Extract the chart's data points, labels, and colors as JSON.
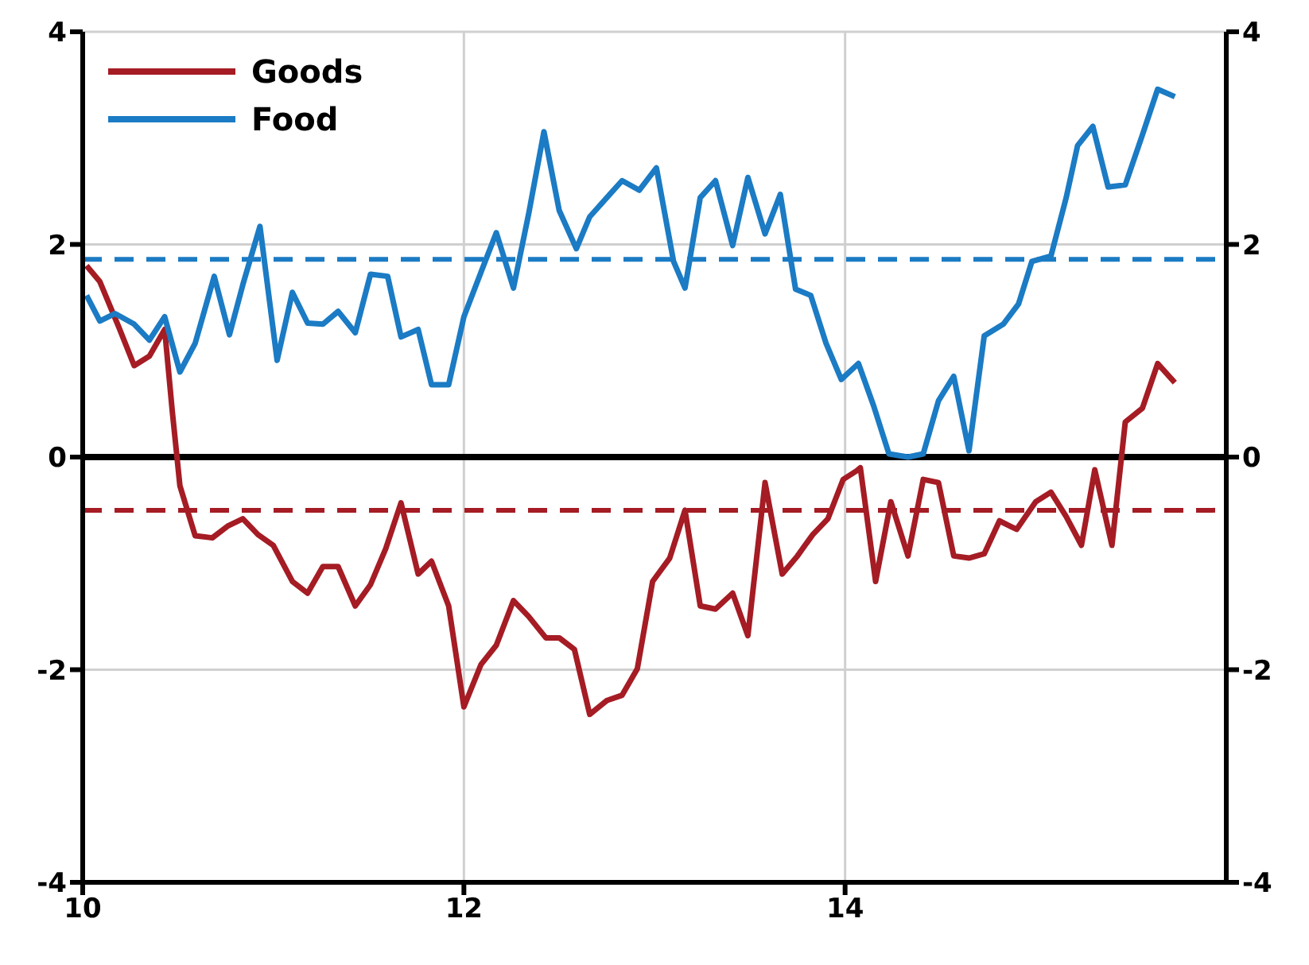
{
  "chart_data": {
    "type": "line",
    "xlim": [
      10,
      16
    ],
    "xticks": [
      10,
      12,
      14
    ],
    "ylim": [
      -4,
      4
    ],
    "yticks": [
      -4,
      -2,
      0,
      2,
      4
    ],
    "y2lim": [
      -4,
      4
    ],
    "y2ticks": [
      -4,
      -2,
      0,
      2,
      4
    ],
    "grid": true,
    "legend": "top left",
    "marker": "none",
    "line_style": "solid",
    "series": [
      {
        "name": "Goods",
        "color": "#a51c24",
        "x": [
          10.02,
          10.09,
          10.19,
          10.27,
          10.35,
          10.43,
          10.47,
          10.51,
          10.59,
          10.68,
          10.76,
          10.84,
          10.92,
          11.0,
          11.1,
          11.18,
          11.26,
          11.34,
          11.43,
          11.51,
          11.59,
          11.67,
          11.76,
          11.83,
          11.92,
          12.0,
          12.09,
          12.17,
          12.26,
          12.34,
          12.43,
          12.5,
          12.58,
          12.66,
          12.75,
          12.83,
          12.91,
          12.99,
          13.08,
          13.16,
          13.24,
          13.32,
          13.41,
          13.49,
          13.58,
          13.67,
          13.75,
          13.83,
          13.91,
          13.99,
          14.06,
          14.08,
          14.16,
          14.24,
          14.33,
          14.41,
          14.49,
          14.57,
          14.65,
          14.73,
          14.81,
          14.9,
          15.0,
          15.08,
          15.16,
          15.24,
          15.31,
          15.4,
          15.47,
          15.56,
          15.64,
          15.73
        ],
        "values": [
          1.8,
          1.65,
          1.22,
          0.86,
          0.95,
          1.2,
          0.43,
          -0.27,
          -0.74,
          -0.76,
          -0.65,
          -0.58,
          -0.73,
          -0.83,
          -1.17,
          -1.28,
          -1.03,
          -1.03,
          -1.4,
          -1.2,
          -0.86,
          -0.43,
          -1.1,
          -0.98,
          -1.4,
          -2.35,
          -1.95,
          -1.77,
          -1.35,
          -1.5,
          -1.7,
          -1.7,
          -1.81,
          -2.42,
          -2.29,
          -2.24,
          -1.99,
          -1.17,
          -0.95,
          -0.5,
          -1.4,
          -1.43,
          -1.28,
          -1.68,
          -0.24,
          -1.1,
          -0.93,
          -0.73,
          -0.58,
          -0.21,
          -0.13,
          -0.1,
          -1.17,
          -0.42,
          -0.93,
          -0.21,
          -0.24,
          -0.93,
          -0.95,
          -0.91,
          -0.6,
          -0.68,
          -0.42,
          -0.33,
          -0.56,
          -0.83,
          -0.12,
          -0.83,
          0.33,
          0.46,
          0.88,
          0.7
        ]
      },
      {
        "name": "Food",
        "color": "#1b7bc4",
        "x": [
          10.02,
          10.09,
          10.17,
          10.27,
          10.35,
          10.43,
          10.51,
          10.59,
          10.69,
          10.77,
          10.84,
          10.93,
          11.02,
          11.1,
          11.18,
          11.26,
          11.34,
          11.43,
          11.51,
          11.6,
          11.67,
          11.76,
          11.83,
          11.92,
          12.0,
          12.09,
          12.17,
          12.26,
          12.34,
          12.42,
          12.5,
          12.59,
          12.66,
          12.75,
          12.83,
          12.92,
          13.01,
          13.1,
          13.16,
          13.24,
          13.32,
          13.41,
          13.49,
          13.58,
          13.66,
          13.74,
          13.82,
          13.9,
          13.98,
          14.07,
          14.15,
          14.23,
          14.33,
          14.41,
          14.49,
          14.57,
          14.65,
          14.73,
          14.83,
          14.91,
          14.98,
          15.08,
          15.16,
          15.22,
          15.3,
          15.38,
          15.47,
          15.56,
          15.64,
          15.73
        ],
        "values": [
          1.52,
          1.28,
          1.35,
          1.25,
          1.1,
          1.32,
          0.8,
          1.07,
          1.7,
          1.15,
          1.62,
          2.17,
          0.91,
          1.55,
          1.26,
          1.25,
          1.37,
          1.17,
          1.72,
          1.7,
          1.13,
          1.2,
          0.68,
          0.68,
          1.32,
          1.74,
          2.11,
          1.59,
          2.29,
          3.06,
          2.32,
          1.96,
          2.26,
          2.44,
          2.6,
          2.51,
          2.72,
          1.84,
          1.59,
          2.44,
          2.6,
          1.99,
          2.63,
          2.1,
          2.47,
          1.58,
          1.52,
          1.07,
          0.73,
          0.88,
          0.48,
          0.03,
          0,
          0.03,
          0.53,
          0.76,
          0.06,
          1.14,
          1.25,
          1.44,
          1.84,
          1.89,
          2.44,
          2.93,
          3.11,
          2.54,
          2.56,
          3.03,
          3.46,
          3.39
        ]
      }
    ],
    "ref_lines": [
      {
        "axis": "y",
        "value": 0,
        "color": "#000000",
        "line_style": "solid"
      },
      {
        "axis": "y",
        "value": 1.86,
        "color": "#1b7bc4",
        "line_style": "dashed"
      },
      {
        "axis": "y",
        "value": -0.5,
        "color": "#a51c24",
        "line_style": "dashed"
      }
    ]
  }
}
